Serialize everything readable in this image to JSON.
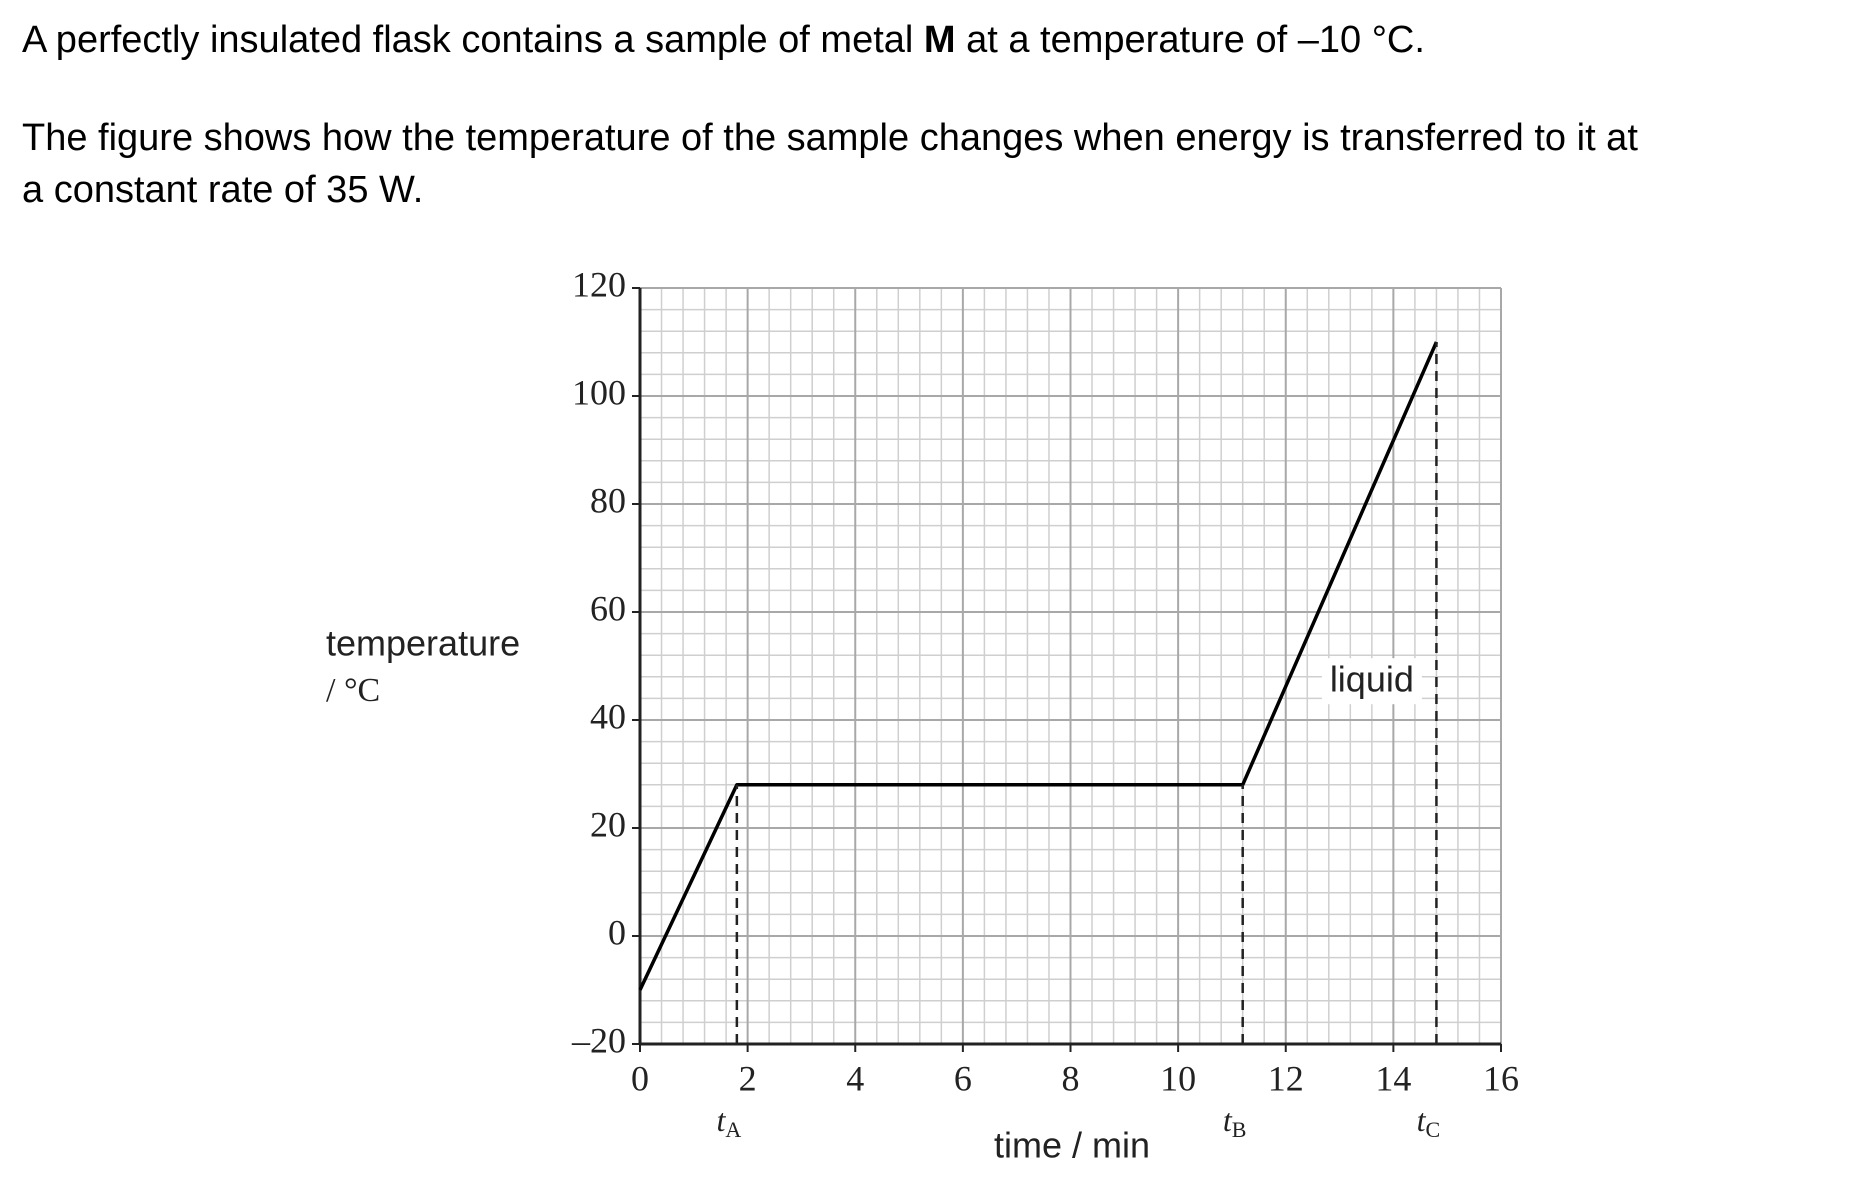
{
  "question": {
    "intro": [
      "A perfectly insulated flask contains a sample of metal ",
      "M",
      " at a temperature of –10 °C."
    ],
    "figure_text": [
      "The figure shows how the temperature of the sample changes when energy is transferred to it at",
      "a constant rate of 35 W."
    ]
  },
  "chart_data": {
    "type": "line",
    "x": [
      0,
      1.8,
      11.2,
      14.8
    ],
    "series": [
      {
        "name": "temperature",
        "color": "#000000",
        "values": [
          -10,
          28,
          28,
          110
        ]
      }
    ],
    "xlim": [
      0,
      16
    ],
    "ylim": [
      -20,
      120
    ],
    "xticks": [
      0,
      2,
      4,
      6,
      8,
      10,
      12,
      14,
      16
    ],
    "yticks": [
      {
        "value": -20,
        "label": "–20"
      },
      0,
      20,
      40,
      60,
      80,
      100,
      120
    ],
    "xlabel": "time / min",
    "ylabel": [
      "temperature",
      "/ °C"
    ],
    "grid": true,
    "markers": [
      {
        "x": 1.8,
        "label": "t",
        "subscript": "A"
      },
      {
        "x": 11.2,
        "label": "t",
        "subscript": "B"
      },
      {
        "x": 14.8,
        "label": "t",
        "subscript": "C"
      }
    ],
    "annotations": [
      {
        "text": "liquid",
        "x": 13.6,
        "y": 47
      }
    ]
  }
}
